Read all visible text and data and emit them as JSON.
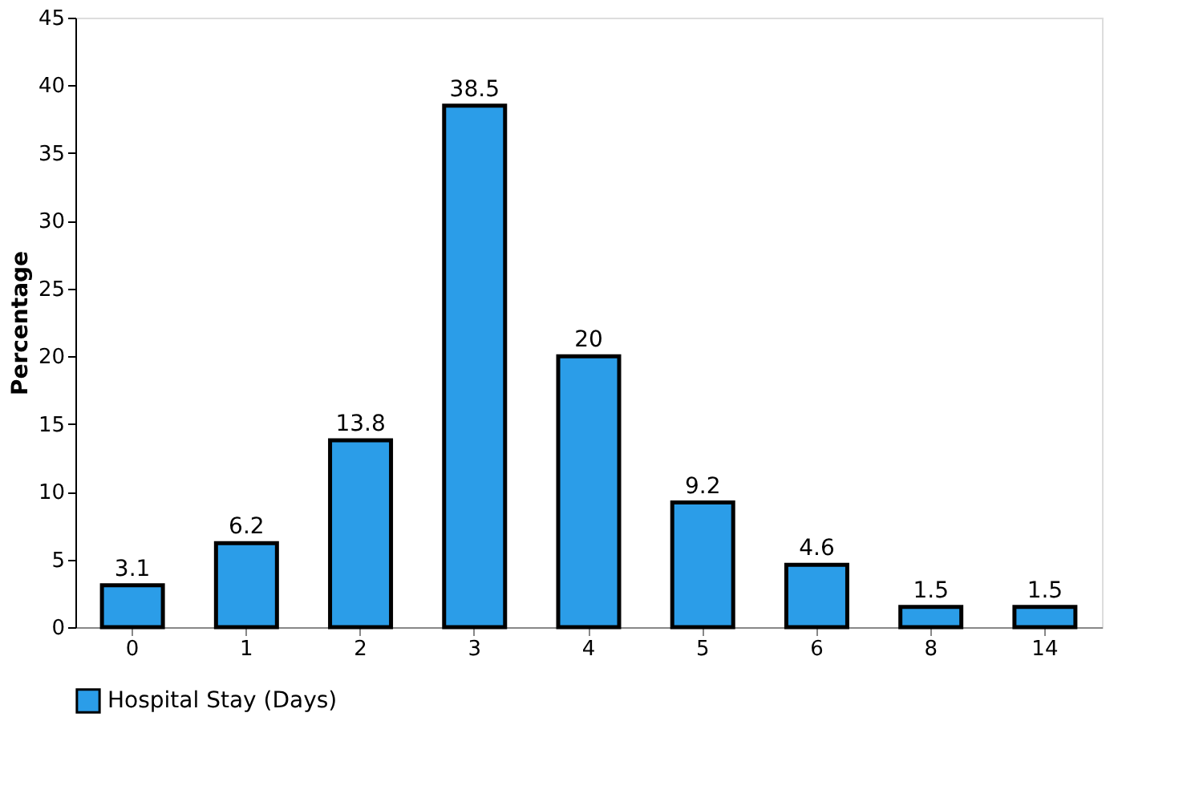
{
  "chart_data": {
    "type": "bar",
    "ylabel": "Percentage",
    "categories": [
      "0",
      "1",
      "2",
      "3",
      "4",
      "5",
      "6",
      "8",
      "14"
    ],
    "series": [
      {
        "name": "Hospital Stay (Days)",
        "color": "#2b9de8",
        "values": [
          3.1,
          6.2,
          13.8,
          38.5,
          20,
          9.2,
          4.6,
          1.5,
          1.5
        ]
      }
    ],
    "ylim": [
      0,
      45
    ],
    "yticks": [
      0,
      5,
      10,
      15,
      20,
      25,
      30,
      35,
      40,
      45
    ],
    "data_labels": true,
    "legend": "bottom",
    "grid": false
  }
}
